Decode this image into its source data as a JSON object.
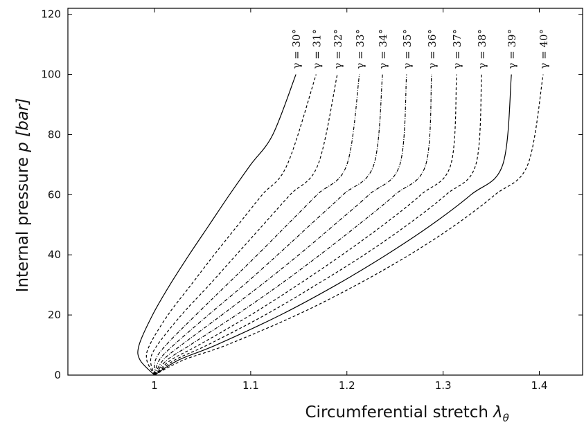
{
  "chart_data": {
    "type": "line",
    "title": "",
    "xlabel": "Circumferential stretch",
    "xlabel_symbol": "λ",
    "xlabel_subscript": "θ",
    "ylabel": "Internal pressure",
    "ylabel_symbol": "p",
    "ylabel_unit": "[bar]",
    "xlim": [
      0.91,
      1.445
    ],
    "ylim": [
      0,
      122
    ],
    "xticks": [
      1,
      1.1,
      1.2,
      1.3,
      1.4
    ],
    "xtick_labels": [
      "1",
      "1.1",
      "1.2",
      "1.3",
      "1.4"
    ],
    "yticks": [
      0,
      20,
      40,
      60,
      80,
      100,
      120
    ],
    "ytick_labels": [
      "0",
      "20",
      "40",
      "60",
      "80",
      "100",
      "120"
    ],
    "grid": false,
    "series": [
      {
        "name": "γ = 30°",
        "style": "solid",
        "x": [
          1.0,
          0.985,
          0.984,
          0.998,
          1.016,
          1.036,
          1.057,
          1.078,
          1.1,
          1.123,
          1.147
        ],
        "y": [
          0,
          5,
          10,
          20,
          30,
          40,
          50,
          60,
          70,
          80,
          100
        ]
      },
      {
        "name": "γ = 31°",
        "style": "dashed",
        "x": [
          1.0,
          0.992,
          0.995,
          1.014,
          1.038,
          1.062,
          1.087,
          1.112,
          1.138,
          1.168
        ],
        "y": [
          0,
          5,
          10,
          20,
          30,
          40,
          50,
          60,
          70,
          100
        ]
      },
      {
        "name": "γ = 32°",
        "style": "dashed",
        "x": [
          1.0,
          0.996,
          1.003,
          1.028,
          1.057,
          1.085,
          1.113,
          1.141,
          1.17,
          1.19
        ],
        "y": [
          0,
          5,
          10,
          20,
          30,
          40,
          50,
          60,
          70,
          100
        ]
      },
      {
        "name": "γ = 33°",
        "style": "dashdot",
        "x": [
          1.0,
          1.001,
          1.012,
          1.043,
          1.075,
          1.107,
          1.138,
          1.169,
          1.2,
          1.213
        ],
        "y": [
          0,
          5,
          10,
          20,
          30,
          40,
          50,
          60,
          70,
          100
        ]
      },
      {
        "name": "γ = 34°",
        "style": "dashdot",
        "x": [
          1.0,
          1.005,
          1.02,
          1.056,
          1.093,
          1.128,
          1.162,
          1.196,
          1.228,
          1.237
        ],
        "y": [
          0,
          5,
          10,
          20,
          30,
          40,
          50,
          60,
          70,
          100
        ]
      },
      {
        "name": "γ = 35°",
        "style": "dashdot",
        "x": [
          1.0,
          1.009,
          1.028,
          1.07,
          1.111,
          1.15,
          1.187,
          1.223,
          1.255,
          1.262
        ],
        "y": [
          0,
          5,
          10,
          20,
          30,
          40,
          50,
          60,
          70,
          100
        ]
      },
      {
        "name": "γ = 36°",
        "style": "dashdot",
        "x": [
          1.0,
          1.013,
          1.037,
          1.085,
          1.13,
          1.172,
          1.212,
          1.25,
          1.282,
          1.288
        ],
        "y": [
          0,
          5,
          10,
          20,
          30,
          40,
          50,
          60,
          70,
          100
        ]
      },
      {
        "name": "γ = 37°",
        "style": "dashed",
        "x": [
          1.0,
          1.017,
          1.046,
          1.1,
          1.149,
          1.195,
          1.238,
          1.277,
          1.308,
          1.314
        ],
        "y": [
          0,
          5,
          10,
          20,
          30,
          40,
          50,
          60,
          70,
          100
        ]
      },
      {
        "name": "γ = 38°",
        "style": "dashed",
        "x": [
          1.0,
          1.021,
          1.055,
          1.115,
          1.168,
          1.218,
          1.263,
          1.303,
          1.334,
          1.34
        ],
        "y": [
          0,
          5,
          10,
          20,
          30,
          40,
          50,
          60,
          70,
          100
        ]
      },
      {
        "name": "γ = 39°",
        "style": "solid",
        "x": [
          1.0,
          1.025,
          1.064,
          1.131,
          1.189,
          1.241,
          1.288,
          1.329,
          1.362,
          1.371
        ],
        "y": [
          0,
          5,
          10,
          20,
          30,
          40,
          50,
          60,
          70,
          100
        ]
      },
      {
        "name": "γ = 40°",
        "style": "dashed",
        "x": [
          1.0,
          1.03,
          1.075,
          1.148,
          1.21,
          1.265,
          1.313,
          1.354,
          1.388,
          1.404
        ],
        "y": [
          0,
          5,
          10,
          20,
          30,
          40,
          50,
          60,
          70,
          100
        ]
      }
    ],
    "colors": {
      "line": "#000000",
      "background": "#ffffff"
    }
  }
}
